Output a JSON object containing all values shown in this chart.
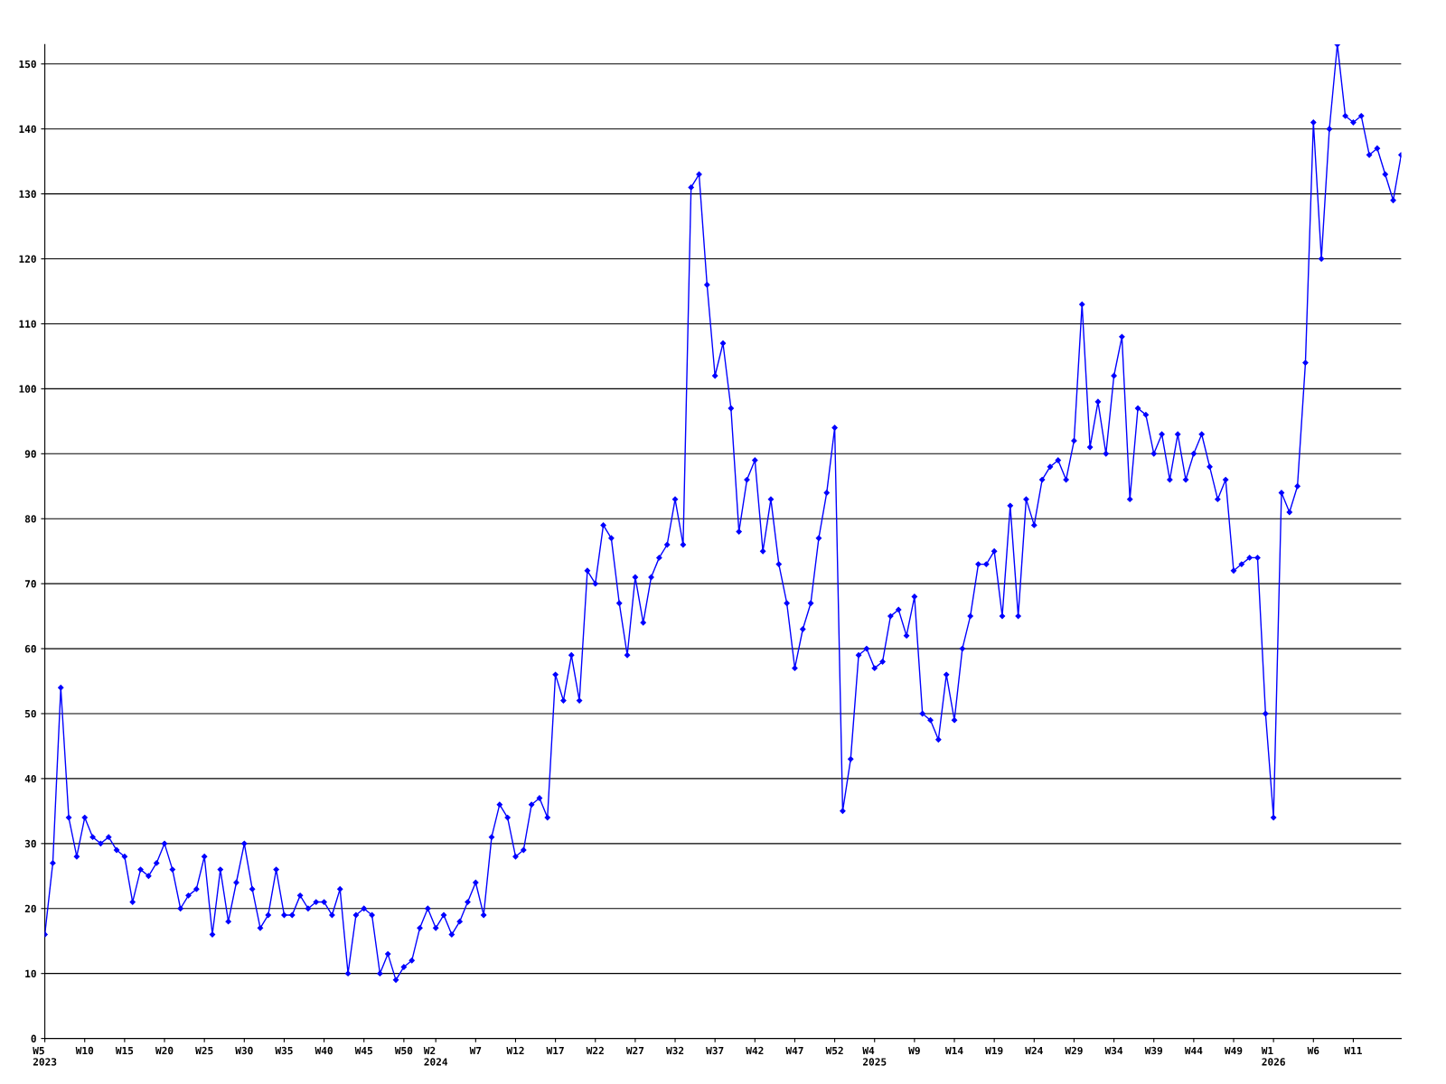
{
  "chart_data": {
    "type": "line",
    "color": "#0000ff",
    "marker": "diamond",
    "line_style": "solid",
    "grid": "y",
    "legend": false,
    "categories": [
      "W5\n2023",
      null,
      null,
      null,
      null,
      "W10",
      null,
      null,
      null,
      null,
      "W15",
      null,
      null,
      null,
      null,
      "W20",
      null,
      null,
      null,
      null,
      "W25",
      null,
      null,
      null,
      null,
      "W30",
      null,
      null,
      null,
      null,
      "W35",
      null,
      null,
      null,
      null,
      "W40",
      null,
      null,
      null,
      null,
      "W45",
      null,
      null,
      null,
      null,
      "W50",
      null,
      null,
      null,
      "W2\n2024",
      null,
      null,
      null,
      null,
      "W7",
      null,
      null,
      null,
      null,
      "W12",
      null,
      null,
      null,
      null,
      "W17",
      null,
      null,
      null,
      null,
      "W22",
      null,
      null,
      null,
      null,
      "W27",
      null,
      null,
      null,
      null,
      "W32",
      null,
      null,
      null,
      null,
      "W37",
      null,
      null,
      null,
      null,
      "W42",
      null,
      null,
      null,
      null,
      "W47",
      null,
      null,
      null,
      null,
      "W52",
      null,
      null,
      null,
      null,
      "W4\n2025",
      null,
      null,
      null,
      null,
      "W9",
      null,
      null,
      null,
      null,
      "W14",
      null,
      null,
      null,
      null,
      "W19",
      null,
      null,
      null,
      null,
      "W24",
      null,
      null,
      null,
      null,
      "W29",
      null,
      null,
      null,
      null,
      "W34",
      null,
      null,
      null,
      null,
      "W39",
      null,
      null,
      null,
      null,
      "W44",
      null,
      null,
      null,
      null,
      "W49",
      null,
      null,
      null,
      null,
      "W1\n2026",
      null,
      null,
      null,
      null,
      "W6",
      null,
      null,
      null,
      null,
      "W11",
      null,
      null,
      null,
      null,
      null,
      null
    ],
    "values": [
      16,
      27,
      54,
      34,
      28,
      34,
      31,
      30,
      31,
      29,
      28,
      21,
      26,
      25,
      27,
      30,
      26,
      20,
      22,
      23,
      28,
      16,
      26,
      18,
      24,
      30,
      23,
      17,
      19,
      26,
      19,
      19,
      22,
      20,
      21,
      21,
      19,
      23,
      10,
      19,
      20,
      19,
      10,
      13,
      9,
      11,
      12,
      17,
      20,
      17,
      19,
      16,
      18,
      21,
      24,
      19,
      31,
      36,
      34,
      28,
      29,
      36,
      37,
      34,
      56,
      52,
      59,
      52,
      72,
      70,
      79,
      77,
      67,
      59,
      71,
      64,
      71,
      74,
      76,
      83,
      76,
      131,
      133,
      116,
      102,
      107,
      97,
      78,
      86,
      89,
      75,
      83,
      73,
      67,
      57,
      63,
      67,
      77,
      84,
      94,
      35,
      43,
      59,
      60,
      57,
      58,
      65,
      66,
      62,
      68,
      50,
      49,
      46,
      56,
      49,
      60,
      65,
      73,
      73,
      75,
      65,
      82,
      65,
      83,
      79,
      86,
      88,
      89,
      86,
      92,
      113,
      91,
      98,
      90,
      102,
      108,
      83,
      97,
      96,
      90,
      93,
      86,
      93,
      86,
      90,
      93,
      88,
      83,
      86,
      72,
      73,
      74,
      74,
      50,
      34,
      84,
      81,
      85,
      104,
      141,
      120,
      140,
      153,
      142,
      141,
      142,
      136,
      137,
      133,
      129,
      136
    ],
    "ylim": [
      0,
      153
    ],
    "yticks": [
      0,
      10,
      20,
      30,
      40,
      50,
      60,
      70,
      80,
      90,
      100,
      110,
      120,
      130,
      140,
      150
    ]
  }
}
